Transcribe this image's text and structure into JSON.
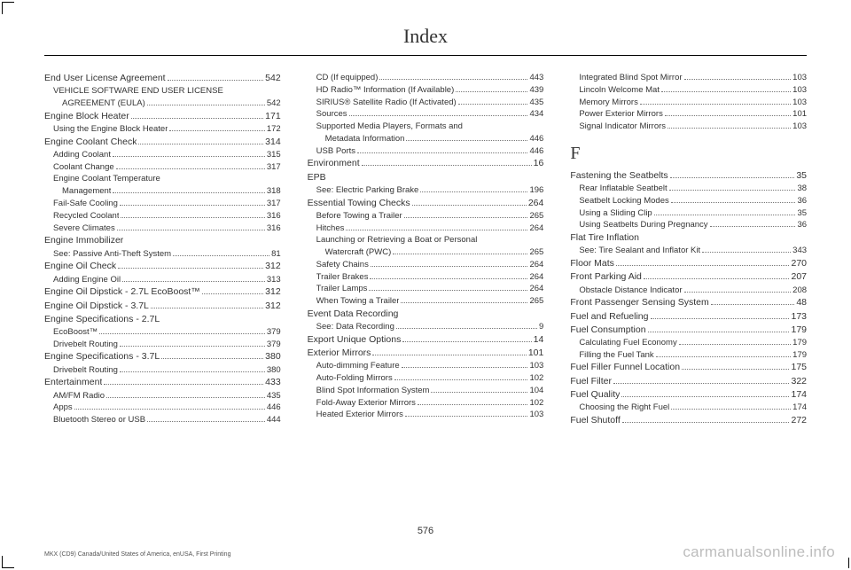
{
  "title": "Index",
  "page_number": "576",
  "footer_left": "MKX (CD9) Canada/United States of America, enUSA, First Printing",
  "footer_right": "carmanualsonline.info",
  "columns": [
    [
      {
        "t": "main",
        "label": "End User License Agreement",
        "pg": "542"
      },
      {
        "t": "sub",
        "label": "VEHICLE SOFTWARE END USER LICENSE",
        "pg": ""
      },
      {
        "t": "sub2",
        "label": "AGREEMENT (EULA) ",
        "pg": "542"
      },
      {
        "t": "main",
        "label": "Engine Block Heater",
        "pg": "171"
      },
      {
        "t": "sub",
        "label": "Using the Engine Block Heater",
        "pg": "172"
      },
      {
        "t": "main",
        "label": "Engine Coolant Check",
        "pg": "314"
      },
      {
        "t": "sub",
        "label": "Adding Coolant",
        "pg": "315"
      },
      {
        "t": "sub",
        "label": "Coolant Change",
        "pg": "317"
      },
      {
        "t": "sub",
        "label": "Engine Coolant Temperature",
        "pg": ""
      },
      {
        "t": "sub2",
        "label": "Management",
        "pg": "318"
      },
      {
        "t": "sub",
        "label": "Fail-Safe Cooling",
        "pg": "317"
      },
      {
        "t": "sub",
        "label": "Recycled Coolant",
        "pg": "316"
      },
      {
        "t": "sub",
        "label": "Severe Climates",
        "pg": "316"
      },
      {
        "t": "main",
        "label": "Engine Immobilizer",
        "pg": ""
      },
      {
        "t": "sub",
        "label": "See: Passive Anti-Theft System",
        "pg": "81"
      },
      {
        "t": "main",
        "label": "Engine Oil Check",
        "pg": "312"
      },
      {
        "t": "sub",
        "label": "Adding Engine Oil",
        "pg": "313"
      },
      {
        "t": "main",
        "label": "Engine Oil Dipstick - 2.7L EcoBoost™",
        "pg": "312"
      },
      {
        "t": "main",
        "label": "Engine Oil Dipstick - 3.7L",
        "pg": "312"
      },
      {
        "t": "main",
        "label": "Engine Specifications - 2.7L",
        "pg": ""
      },
      {
        "t": "sub",
        "label": "EcoBoost™",
        "pg": "379"
      },
      {
        "t": "sub",
        "label": "Drivebelt Routing",
        "pg": "379"
      },
      {
        "t": "main",
        "label": "Engine Specifications - 3.7L",
        "pg": "380"
      },
      {
        "t": "sub",
        "label": "Drivebelt Routing",
        "pg": "380"
      },
      {
        "t": "main",
        "label": "Entertainment",
        "pg": "433"
      },
      {
        "t": "sub",
        "label": "AM/FM Radio",
        "pg": "435"
      },
      {
        "t": "sub",
        "label": "Apps",
        "pg": "446"
      },
      {
        "t": "sub",
        "label": "Bluetooth Stereo or USB",
        "pg": "444"
      }
    ],
    [
      {
        "t": "sub",
        "label": "CD (If equipped)",
        "pg": "443"
      },
      {
        "t": "sub",
        "label": "HD Radio™ Information (If Available)",
        "pg": "439"
      },
      {
        "t": "sub",
        "label": "SIRIUS® Satellite Radio (If Activated)",
        "pg": "435"
      },
      {
        "t": "sub",
        "label": "Sources",
        "pg": "434"
      },
      {
        "t": "sub",
        "label": "Supported Media Players, Formats and",
        "pg": ""
      },
      {
        "t": "sub2",
        "label": "Metadata Information",
        "pg": "446"
      },
      {
        "t": "sub",
        "label": "USB Ports",
        "pg": "446"
      },
      {
        "t": "main",
        "label": "Environment",
        "pg": "16"
      },
      {
        "t": "main",
        "label": "EPB",
        "pg": ""
      },
      {
        "t": "sub",
        "label": "See: Electric Parking Brake",
        "pg": "196"
      },
      {
        "t": "main",
        "label": "Essential Towing Checks",
        "pg": "264"
      },
      {
        "t": "sub",
        "label": "Before Towing a Trailer",
        "pg": "265"
      },
      {
        "t": "sub",
        "label": "Hitches",
        "pg": "264"
      },
      {
        "t": "sub",
        "label": "Launching or Retrieving a Boat or Personal",
        "pg": ""
      },
      {
        "t": "sub2",
        "label": "Watercraft (PWC)",
        "pg": "265"
      },
      {
        "t": "sub",
        "label": "Safety Chains",
        "pg": "264"
      },
      {
        "t": "sub",
        "label": "Trailer Brakes",
        "pg": "264"
      },
      {
        "t": "sub",
        "label": "Trailer Lamps",
        "pg": "264"
      },
      {
        "t": "sub",
        "label": "When Towing a Trailer",
        "pg": "265"
      },
      {
        "t": "main",
        "label": "Event Data Recording",
        "pg": ""
      },
      {
        "t": "sub",
        "label": "See: Data Recording",
        "pg": "9"
      },
      {
        "t": "main",
        "label": "Export Unique Options",
        "pg": "14"
      },
      {
        "t": "main",
        "label": "Exterior Mirrors",
        "pg": "101"
      },
      {
        "t": "sub",
        "label": "Auto-dimming Feature",
        "pg": "103"
      },
      {
        "t": "sub",
        "label": "Auto-Folding Mirrors",
        "pg": "102"
      },
      {
        "t": "sub",
        "label": "Blind Spot Information System",
        "pg": "104"
      },
      {
        "t": "sub",
        "label": "Fold-Away Exterior Mirrors",
        "pg": "102"
      },
      {
        "t": "sub",
        "label": "Heated Exterior Mirrors ",
        "pg": "103"
      }
    ],
    [
      {
        "t": "sub",
        "label": "Integrated Blind Spot Mirror",
        "pg": "103"
      },
      {
        "t": "sub",
        "label": "Lincoln Welcome Mat",
        "pg": "103"
      },
      {
        "t": "sub",
        "label": "Memory Mirrors ",
        "pg": "103"
      },
      {
        "t": "sub",
        "label": "Power Exterior Mirrors",
        "pg": "101"
      },
      {
        "t": "sub",
        "label": "Signal Indicator Mirrors ",
        "pg": "103"
      },
      {
        "t": "letter",
        "label": "F"
      },
      {
        "t": "main",
        "label": "Fastening the Seatbelts",
        "pg": "35"
      },
      {
        "t": "sub",
        "label": "Rear Inflatable Seatbelt",
        "pg": "38"
      },
      {
        "t": "sub",
        "label": "Seatbelt Locking Modes",
        "pg": "36"
      },
      {
        "t": "sub",
        "label": "Using a Sliding Clip",
        "pg": "35"
      },
      {
        "t": "sub",
        "label": "Using Seatbelts During Pregnancy",
        "pg": "36"
      },
      {
        "t": "main",
        "label": "Flat Tire Inflation",
        "pg": ""
      },
      {
        "t": "sub",
        "label": "See: Tire Sealant and Inflator Kit",
        "pg": "343"
      },
      {
        "t": "main",
        "label": "Floor Mats",
        "pg": "270"
      },
      {
        "t": "main",
        "label": "Front Parking Aid",
        "pg": "207"
      },
      {
        "t": "sub",
        "label": "Obstacle Distance Indicator",
        "pg": "208"
      },
      {
        "t": "main",
        "label": "Front Passenger Sensing System",
        "pg": "48"
      },
      {
        "t": "main",
        "label": "Fuel and Refueling",
        "pg": "173"
      },
      {
        "t": "main",
        "label": "Fuel Consumption",
        "pg": "179"
      },
      {
        "t": "sub",
        "label": "Calculating Fuel Economy",
        "pg": "179"
      },
      {
        "t": "sub",
        "label": "Filling the Fuel Tank",
        "pg": "179"
      },
      {
        "t": "main",
        "label": "Fuel Filler Funnel Location",
        "pg": "175"
      },
      {
        "t": "main",
        "label": "Fuel Filter",
        "pg": "322"
      },
      {
        "t": "main",
        "label": "Fuel Quality",
        "pg": "174"
      },
      {
        "t": "sub",
        "label": "Choosing the Right Fuel",
        "pg": "174"
      },
      {
        "t": "main",
        "label": "Fuel Shutoff",
        "pg": "272"
      }
    ]
  ]
}
